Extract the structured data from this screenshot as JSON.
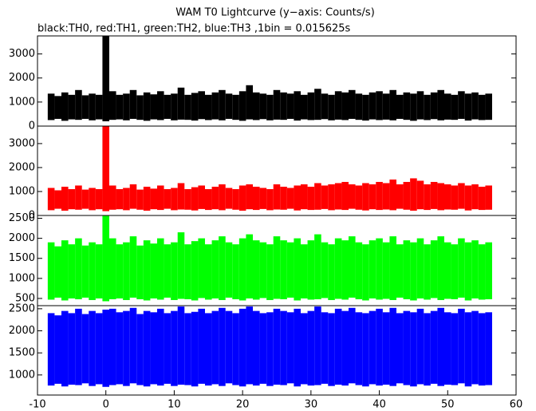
{
  "chart_data": [
    {
      "type": "range",
      "title": "WAM T0 Lightcurve (y−axis: Counts/s)",
      "subtitle": "black:TH0, red:TH1, green:TH2, blue:TH3 ,1bin = 0.015625s",
      "color": "#000000",
      "x": [
        -8,
        -7,
        -6,
        -5,
        -4,
        -3,
        -2,
        -1,
        0,
        1,
        2,
        3,
        4,
        5,
        6,
        7,
        8,
        9,
        10,
        11,
        12,
        13,
        14,
        15,
        16,
        17,
        18,
        19,
        20,
        21,
        22,
        23,
        24,
        25,
        26,
        27,
        28,
        29,
        30,
        31,
        32,
        33,
        34,
        35,
        36,
        37,
        38,
        39,
        40,
        41,
        42,
        43,
        44,
        45,
        46,
        47,
        48,
        49,
        50,
        51,
        52,
        53,
        54,
        55,
        56
      ],
      "high": [
        1350,
        1250,
        1400,
        1300,
        1500,
        1280,
        1350,
        1300,
        3750,
        1450,
        1300,
        1350,
        1500,
        1280,
        1400,
        1320,
        1450,
        1300,
        1350,
        1600,
        1300,
        1380,
        1450,
        1300,
        1400,
        1500,
        1350,
        1300,
        1450,
        1700,
        1400,
        1350,
        1300,
        1500,
        1400,
        1350,
        1450,
        1300,
        1400,
        1550,
        1350,
        1300,
        1450,
        1400,
        1500,
        1350,
        1300,
        1400,
        1450,
        1350,
        1500,
        1300,
        1400,
        1350,
        1450,
        1300,
        1400,
        1500,
        1350,
        1300,
        1450,
        1350,
        1400,
        1300,
        1350
      ],
      "low": [
        250,
        300,
        220,
        280,
        260,
        300,
        240,
        280,
        200,
        260,
        280,
        240,
        300,
        260,
        220,
        280,
        250,
        300,
        240,
        270,
        260,
        230,
        290,
        250,
        280,
        240,
        300,
        260,
        220,
        280,
        250,
        290,
        240,
        270,
        260,
        300,
        230,
        280,
        250,
        260,
        290,
        240,
        270,
        250,
        300,
        260,
        230,
        280,
        250,
        270,
        240,
        300,
        260,
        220,
        280,
        250,
        290,
        240,
        270,
        260,
        300,
        230,
        280,
        250,
        260
      ],
      "xlim": [
        -10,
        60
      ],
      "ylim": [
        0,
        3750
      ],
      "yticks": [
        0,
        1000,
        2000,
        3000
      ]
    },
    {
      "type": "range",
      "color": "#ff0000",
      "x": [
        -8,
        -7,
        -6,
        -5,
        -4,
        -3,
        -2,
        -1,
        0,
        1,
        2,
        3,
        4,
        5,
        6,
        7,
        8,
        9,
        10,
        11,
        12,
        13,
        14,
        15,
        16,
        17,
        18,
        19,
        20,
        21,
        22,
        23,
        24,
        25,
        26,
        27,
        28,
        29,
        30,
        31,
        32,
        33,
        34,
        35,
        36,
        37,
        38,
        39,
        40,
        41,
        42,
        43,
        44,
        45,
        46,
        47,
        48,
        49,
        50,
        51,
        52,
        53,
        54,
        55,
        56
      ],
      "high": [
        1150,
        1050,
        1200,
        1100,
        1250,
        1080,
        1150,
        1100,
        3750,
        1250,
        1100,
        1150,
        1300,
        1080,
        1200,
        1120,
        1250,
        1100,
        1150,
        1350,
        1100,
        1180,
        1250,
        1100,
        1200,
        1300,
        1150,
        1100,
        1250,
        1300,
        1200,
        1150,
        1100,
        1300,
        1200,
        1150,
        1250,
        1300,
        1200,
        1350,
        1250,
        1300,
        1350,
        1400,
        1300,
        1250,
        1350,
        1300,
        1400,
        1350,
        1500,
        1300,
        1400,
        1550,
        1450,
        1300,
        1400,
        1350,
        1300,
        1250,
        1350,
        1250,
        1300,
        1200,
        1250
      ],
      "low": [
        220,
        280,
        200,
        260,
        240,
        280,
        220,
        260,
        180,
        240,
        260,
        220,
        280,
        240,
        200,
        260,
        230,
        280,
        220,
        250,
        240,
        210,
        270,
        230,
        260,
        220,
        280,
        240,
        200,
        260,
        230,
        270,
        220,
        250,
        240,
        280,
        210,
        260,
        230,
        240,
        270,
        220,
        250,
        230,
        280,
        240,
        210,
        260,
        230,
        250,
        220,
        280,
        240,
        200,
        260,
        230,
        270,
        220,
        250,
        240,
        280,
        210,
        260,
        230,
        240
      ],
      "xlim": [
        -10,
        60
      ],
      "ylim": [
        0,
        3730
      ],
      "yticks": [
        0,
        1000,
        2000,
        3000
      ]
    },
    {
      "type": "range",
      "color": "#00ff00",
      "x": [
        -8,
        -7,
        -6,
        -5,
        -4,
        -3,
        -2,
        -1,
        0,
        1,
        2,
        3,
        4,
        5,
        6,
        7,
        8,
        9,
        10,
        11,
        12,
        13,
        14,
        15,
        16,
        17,
        18,
        19,
        20,
        21,
        22,
        23,
        24,
        25,
        26,
        27,
        28,
        29,
        30,
        31,
        32,
        33,
        34,
        35,
        36,
        37,
        38,
        39,
        40,
        41,
        42,
        43,
        44,
        45,
        46,
        47,
        48,
        49,
        50,
        51,
        52,
        53,
        54,
        55,
        56
      ],
      "high": [
        1900,
        1800,
        1950,
        1850,
        2000,
        1820,
        1900,
        1850,
        2570,
        2000,
        1850,
        1900,
        2050,
        1820,
        1950,
        1870,
        2000,
        1850,
        1900,
        2150,
        1850,
        1930,
        2000,
        1850,
        1950,
        2050,
        1900,
        1850,
        2000,
        2100,
        1950,
        1900,
        1850,
        2050,
        1950,
        1900,
        2000,
        1850,
        1950,
        2100,
        1900,
        1850,
        2000,
        1950,
        2050,
        1900,
        1850,
        1950,
        2000,
        1900,
        2050,
        1850,
        1950,
        1900,
        2000,
        1850,
        1950,
        2050,
        1900,
        1850,
        2000,
        1900,
        1950,
        1850,
        1900
      ],
      "low": [
        470,
        520,
        450,
        500,
        480,
        520,
        460,
        500,
        430,
        480,
        500,
        460,
        520,
        480,
        450,
        500,
        470,
        520,
        460,
        490,
        480,
        450,
        510,
        470,
        500,
        460,
        520,
        480,
        450,
        500,
        470,
        510,
        460,
        490,
        480,
        520,
        450,
        500,
        470,
        480,
        510,
        460,
        490,
        470,
        520,
        480,
        450,
        500,
        470,
        490,
        460,
        520,
        480,
        450,
        500,
        470,
        510,
        460,
        490,
        480,
        520,
        450,
        500,
        470,
        480
      ],
      "xlim": [
        -10,
        60
      ],
      "ylim": [
        320,
        2570
      ],
      "yticks": [
        500,
        1000,
        1500,
        2000,
        2500
      ]
    },
    {
      "type": "range",
      "color": "#0000ff",
      "x": [
        -8,
        -7,
        -6,
        -5,
        -4,
        -3,
        -2,
        -1,
        0,
        1,
        2,
        3,
        4,
        5,
        6,
        7,
        8,
        9,
        10,
        11,
        12,
        13,
        14,
        15,
        16,
        17,
        18,
        19,
        20,
        21,
        22,
        23,
        24,
        25,
        26,
        27,
        28,
        29,
        30,
        31,
        32,
        33,
        34,
        35,
        36,
        37,
        38,
        39,
        40,
        41,
        42,
        43,
        44,
        45,
        46,
        47,
        48,
        49,
        50,
        51,
        52,
        53,
        54,
        55,
        56
      ],
      "high": [
        2400,
        2350,
        2450,
        2400,
        2500,
        2380,
        2450,
        2400,
        2480,
        2500,
        2420,
        2450,
        2520,
        2380,
        2450,
        2420,
        2500,
        2400,
        2450,
        2550,
        2400,
        2430,
        2500,
        2400,
        2450,
        2520,
        2450,
        2400,
        2500,
        2550,
        2450,
        2400,
        2420,
        2500,
        2450,
        2420,
        2500,
        2400,
        2450,
        2550,
        2420,
        2400,
        2500,
        2450,
        2520,
        2420,
        2400,
        2450,
        2500,
        2420,
        2520,
        2400,
        2450,
        2420,
        2500,
        2400,
        2450,
        2520,
        2420,
        2400,
        2500,
        2420,
        2450,
        2400,
        2420
      ],
      "low": [
        760,
        800,
        740,
        780,
        770,
        810,
        750,
        790,
        730,
        770,
        790,
        750,
        810,
        770,
        740,
        790,
        760,
        800,
        750,
        780,
        770,
        740,
        800,
        760,
        790,
        750,
        810,
        770,
        740,
        790,
        760,
        800,
        750,
        780,
        770,
        810,
        740,
        790,
        760,
        770,
        800,
        750,
        780,
        760,
        810,
        770,
        740,
        790,
        760,
        780,
        750,
        810,
        770,
        740,
        790,
        760,
        800,
        750,
        780,
        770,
        810,
        740,
        790,
        760,
        770
      ],
      "xlim": [
        -10,
        60
      ],
      "ylim": [
        545,
        2570
      ],
      "yticks": [
        1000,
        1500,
        2000,
        2500
      ],
      "xticks": [
        -10,
        0,
        10,
        20,
        30,
        40,
        50,
        60
      ]
    }
  ]
}
